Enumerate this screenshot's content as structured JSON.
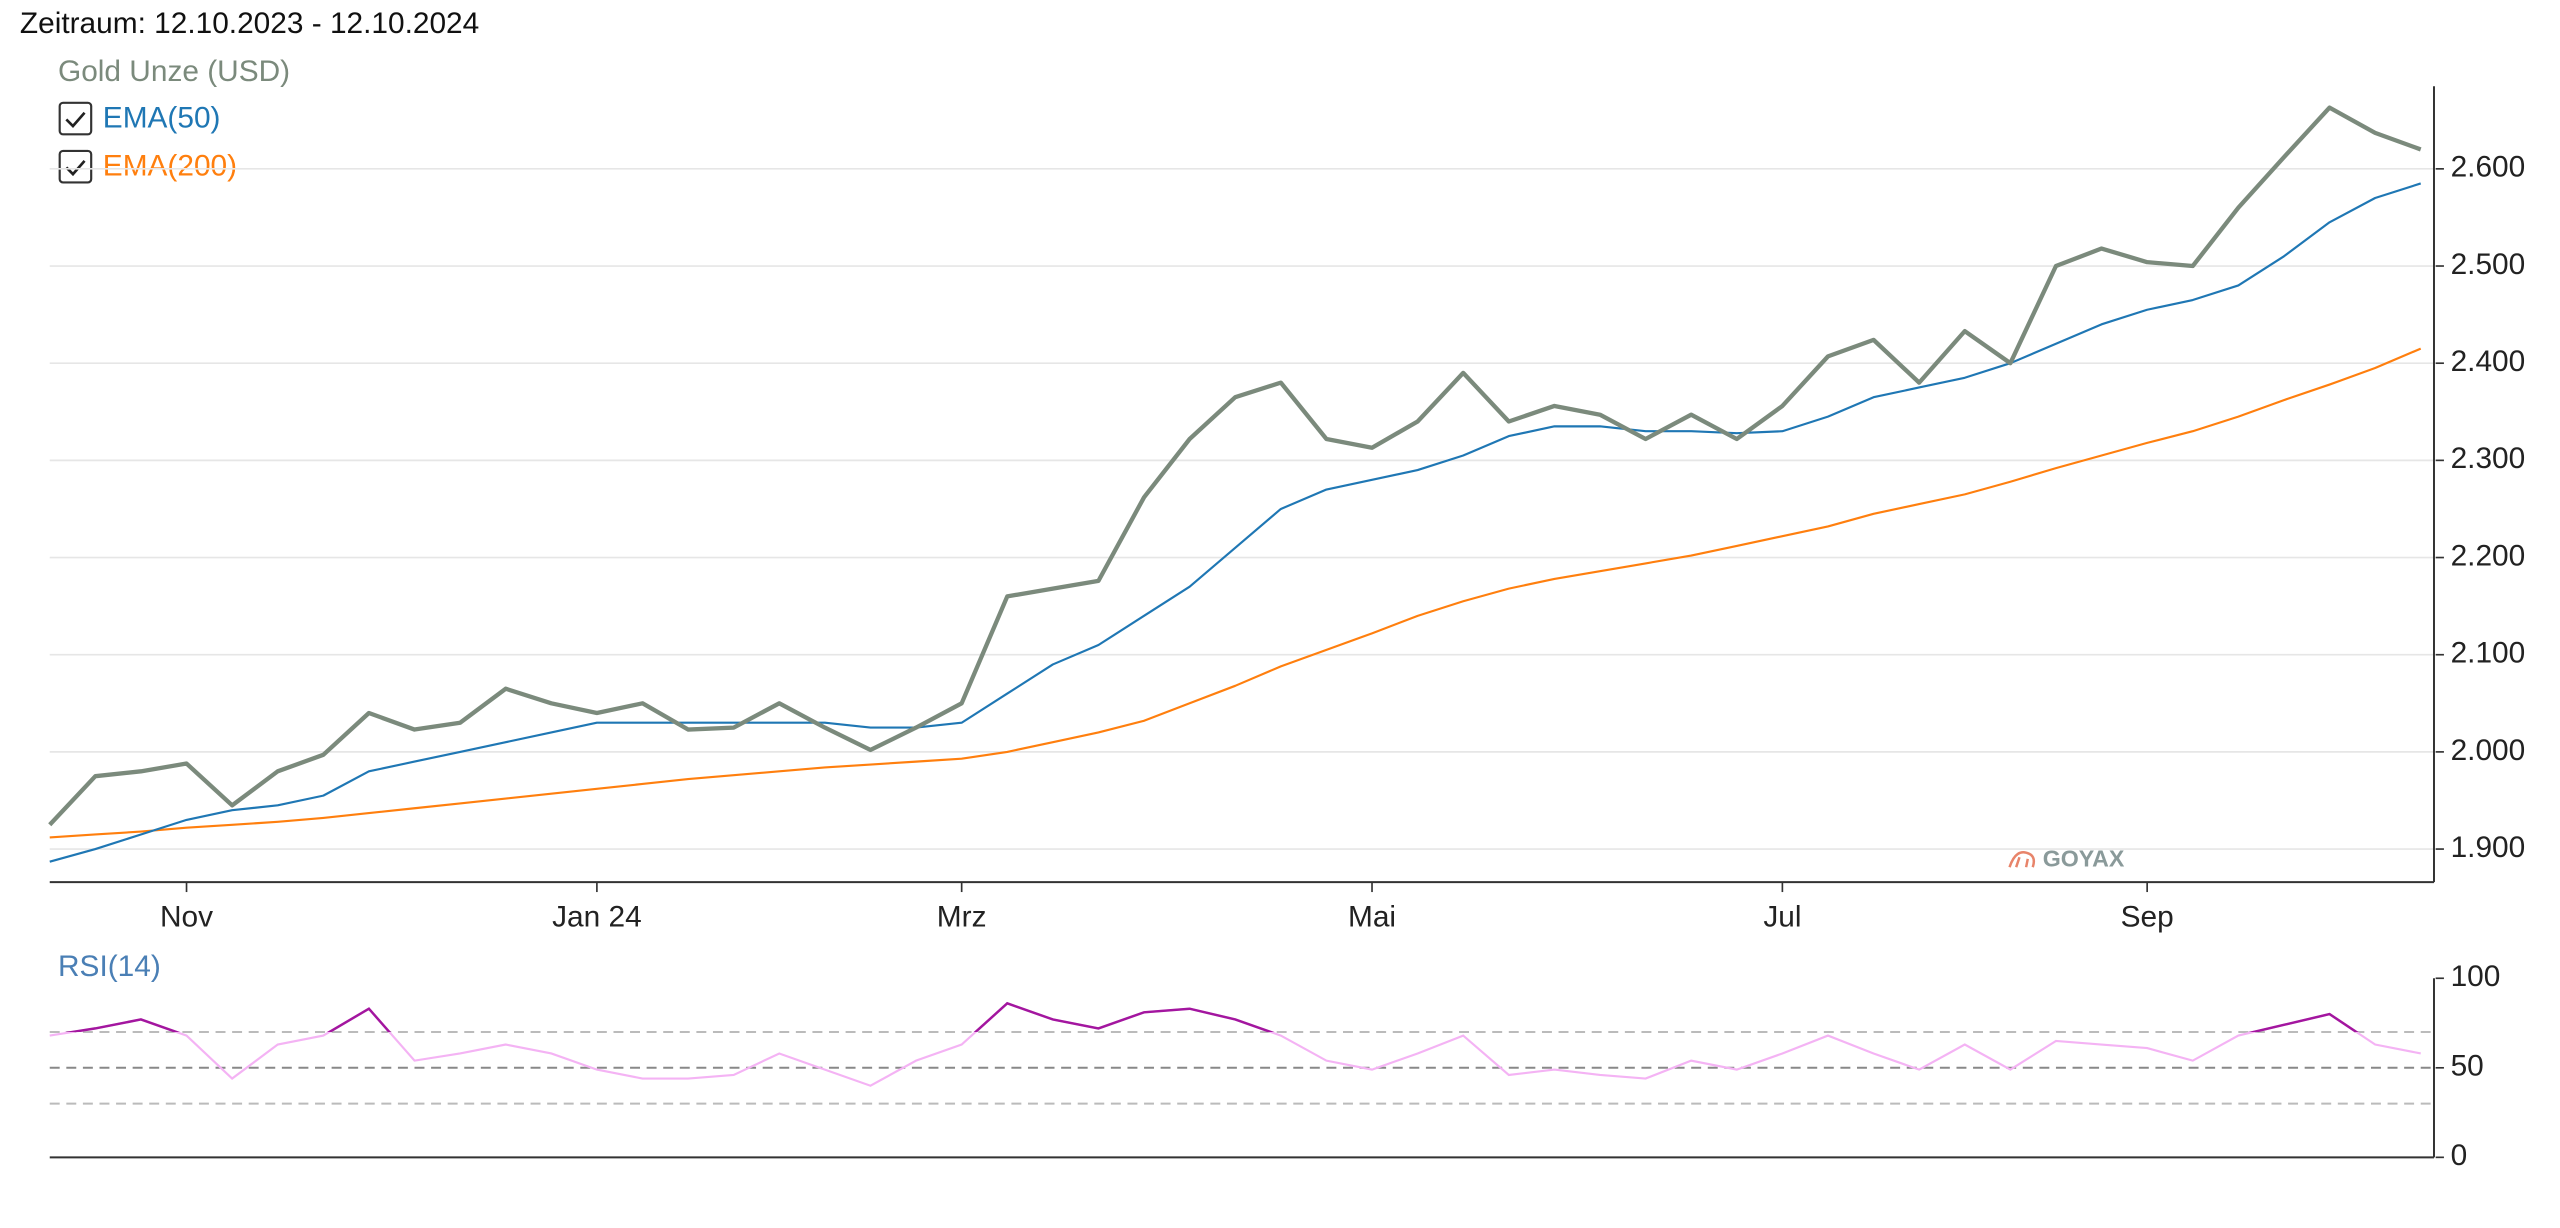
{
  "chart_data": [
    {
      "type": "line",
      "title": "Zeitraum: 12.10.2023 - 12.10.2024",
      "categories": [
        null,
        null,
        null,
        "Nov",
        null,
        null,
        null,
        null,
        null,
        null,
        null,
        null,
        "Jan 24",
        null,
        null,
        null,
        null,
        null,
        null,
        null,
        "Mrz",
        null,
        null,
        null,
        null,
        null,
        null,
        null,
        null,
        "Mai",
        null,
        null,
        null,
        null,
        null,
        null,
        null,
        null,
        "Jul",
        null,
        null,
        null,
        null,
        null,
        null,
        null,
        "Sep",
        null,
        null,
        null,
        null,
        null,
        null
      ],
      "series": [
        {
          "name": "Gold Unze (USD)",
          "color": "#7b8a7c",
          "values": [
            1925,
            1975,
            1980,
            1988,
            1945,
            1980,
            1997,
            2040,
            2023,
            2030,
            2065,
            2050,
            2040,
            2050,
            2023,
            2025,
            2050,
            2025,
            2002,
            2025,
            2050,
            2160,
            2168,
            2176,
            2262,
            2322,
            2365,
            2380,
            2322,
            2313,
            2340,
            2390,
            2340,
            2356,
            2347,
            2322,
            2347,
            2322,
            2356,
            2407,
            2424,
            2380,
            2433,
            2400,
            2500,
            2518,
            2504,
            2500,
            2560,
            2612,
            2663,
            2637,
            2620
          ]
        },
        {
          "name": "EMA(50)",
          "color": "#1f77b4",
          "values": [
            1887,
            1900,
            1915,
            1930,
            1940,
            1945,
            1955,
            1980,
            1990,
            2000,
            2010,
            2020,
            2030,
            2030,
            2030,
            2030,
            2030,
            2030,
            2025,
            2025,
            2030,
            2060,
            2090,
            2110,
            2140,
            2170,
            2210,
            2250,
            2270,
            2280,
            2290,
            2305,
            2325,
            2335,
            2335,
            2330,
            2330,
            2328,
            2330,
            2345,
            2365,
            2375,
            2385,
            2400,
            2420,
            2440,
            2455,
            2465,
            2480,
            2510,
            2545,
            2570,
            2585
          ]
        },
        {
          "name": "EMA(200)",
          "color": "#ff7f0e",
          "values": [
            1912,
            1915,
            1918,
            1922,
            1925,
            1928,
            1932,
            1937,
            1942,
            1947,
            1952,
            1957,
            1962,
            1967,
            1972,
            1976,
            1980,
            1984,
            1987,
            1990,
            1993,
            2000,
            2010,
            2020,
            2032,
            2050,
            2068,
            2088,
            2105,
            2122,
            2140,
            2155,
            2168,
            2178,
            2186,
            2194,
            2202,
            2212,
            2222,
            2232,
            2245,
            2255,
            2265,
            2278,
            2292,
            2305,
            2318,
            2330,
            2345,
            2362,
            2378,
            2395,
            2415
          ]
        }
      ],
      "ylim": [
        1866,
        2685
      ],
      "yticks": [
        {
          "value": 1900,
          "label": "1.900"
        },
        {
          "value": 2000,
          "label": "2.000"
        },
        {
          "value": 2100,
          "label": "2.100"
        },
        {
          "value": 2200,
          "label": "2.200"
        },
        {
          "value": 2300,
          "label": "2.300"
        },
        {
          "value": 2400,
          "label": "2.400"
        },
        {
          "value": 2500,
          "label": "2.500"
        },
        {
          "value": 2600,
          "label": "2.600"
        }
      ],
      "grid": true,
      "watermark": "GOYAX"
    },
    {
      "type": "line",
      "series": [
        {
          "name": "RSI(14)",
          "color": "#f4b3f4",
          "values": [
            68,
            72,
            77,
            68,
            44,
            63,
            68,
            83,
            54,
            58,
            63,
            58,
            49,
            44,
            44,
            46,
            58,
            49,
            40,
            54,
            63,
            86,
            77,
            72,
            81,
            83,
            77,
            68,
            54,
            49,
            58,
            68,
            46,
            49,
            46,
            44,
            54,
            49,
            58,
            68,
            58,
            49,
            63,
            49,
            65,
            63,
            61,
            54,
            68,
            74,
            80,
            63,
            58
          ]
        }
      ],
      "overbought_color": "#a3169f",
      "levels": [
        30,
        50,
        70
      ],
      "ylim": [
        0,
        100
      ],
      "yticks": [
        0,
        50,
        100
      ]
    }
  ]
}
